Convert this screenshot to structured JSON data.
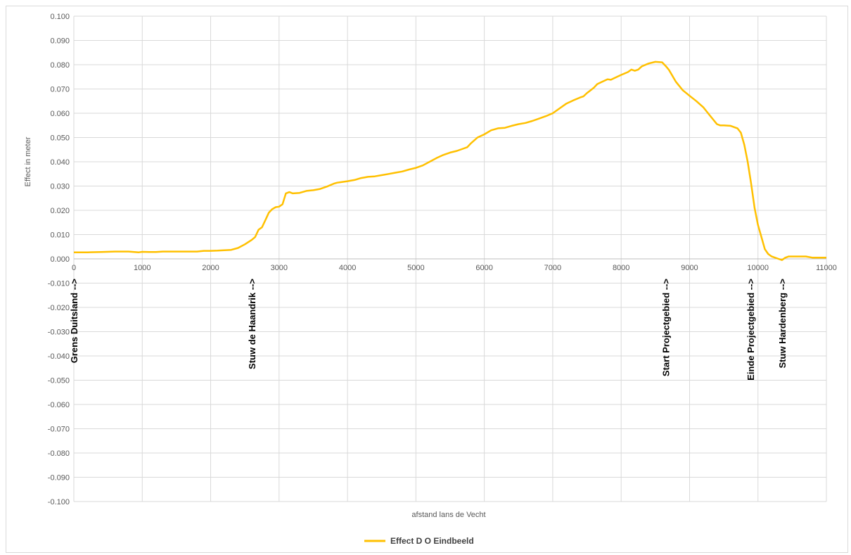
{
  "chart_data": {
    "type": "line",
    "title": "",
    "xlabel": "afstand lans de Vecht",
    "ylabel": "Effect in meter",
    "xlim": [
      0,
      11000
    ],
    "ylim": [
      -0.1,
      0.1
    ],
    "x_ticks": [
      0,
      1000,
      2000,
      3000,
      4000,
      5000,
      6000,
      7000,
      8000,
      9000,
      10000,
      11000
    ],
    "y_ticks": [
      "0.100",
      "0.090",
      "0.080",
      "0.070",
      "0.060",
      "0.050",
      "0.040",
      "0.030",
      "0.020",
      "0.010",
      "0.000",
      "-0.010",
      "-0.020",
      "-0.030",
      "-0.040",
      "-0.050",
      "-0.060",
      "-0.070",
      "-0.080",
      "-0.090",
      "-0.100"
    ],
    "grid": true,
    "legend_position": "bottom",
    "series": [
      {
        "name": "Effect D O Eindbeeld",
        "color": "#FFC000",
        "x": [
          0,
          200,
          400,
          600,
          800,
          950,
          1000,
          1100,
          1200,
          1300,
          1500,
          1800,
          1900,
          2000,
          2100,
          2300,
          2400,
          2500,
          2600,
          2650,
          2700,
          2750,
          2800,
          2850,
          2900,
          2950,
          3000,
          3050,
          3100,
          3150,
          3200,
          3300,
          3400,
          3500,
          3600,
          3700,
          3800,
          3850,
          3900,
          4000,
          4100,
          4200,
          4300,
          4400,
          4500,
          4600,
          4700,
          4800,
          4900,
          5000,
          5100,
          5200,
          5300,
          5400,
          5500,
          5600,
          5700,
          5750,
          5800,
          5900,
          6000,
          6100,
          6200,
          6300,
          6400,
          6500,
          6600,
          6700,
          6800,
          6900,
          7000,
          7100,
          7200,
          7300,
          7400,
          7450,
          7500,
          7600,
          7650,
          7700,
          7800,
          7850,
          7900,
          8000,
          8100,
          8150,
          8200,
          8250,
          8300,
          8400,
          8500,
          8600,
          8650,
          8700,
          8800,
          8900,
          9000,
          9100,
          9200,
          9300,
          9400,
          9450,
          9500,
          9600,
          9700,
          9750,
          9800,
          9850,
          9900,
          9950,
          10000,
          10050,
          10100,
          10150,
          10200,
          10300,
          10350,
          10400,
          10450,
          10500,
          10600,
          10700,
          10800,
          10900,
          11000
        ],
        "values": [
          0.0027,
          0.0027,
          0.0028,
          0.003,
          0.003,
          0.0027,
          0.0029,
          0.0028,
          0.0028,
          0.003,
          0.003,
          0.003,
          0.0033,
          0.0033,
          0.0034,
          0.0037,
          0.0045,
          0.006,
          0.0078,
          0.009,
          0.012,
          0.013,
          0.016,
          0.019,
          0.0205,
          0.0213,
          0.0215,
          0.0225,
          0.027,
          0.0275,
          0.027,
          0.0272,
          0.028,
          0.0283,
          0.0288,
          0.0298,
          0.031,
          0.0314,
          0.0316,
          0.032,
          0.0325,
          0.0333,
          0.0338,
          0.034,
          0.0345,
          0.035,
          0.0355,
          0.036,
          0.0368,
          0.0375,
          0.0385,
          0.04,
          0.0415,
          0.0428,
          0.0438,
          0.0445,
          0.0455,
          0.046,
          0.0475,
          0.05,
          0.0513,
          0.053,
          0.0538,
          0.054,
          0.0548,
          0.0555,
          0.056,
          0.0568,
          0.0578,
          0.0588,
          0.06,
          0.062,
          0.064,
          0.0653,
          0.0665,
          0.067,
          0.0683,
          0.0705,
          0.072,
          0.0727,
          0.074,
          0.0738,
          0.0745,
          0.0758,
          0.077,
          0.078,
          0.0775,
          0.078,
          0.0793,
          0.0805,
          0.0812,
          0.081,
          0.0795,
          0.0778,
          0.073,
          0.0695,
          0.0672,
          0.065,
          0.0625,
          0.059,
          0.0555,
          0.055,
          0.055,
          0.0548,
          0.0538,
          0.052,
          0.047,
          0.04,
          0.031,
          0.021,
          0.014,
          0.009,
          0.004,
          0.002,
          0.001,
          0.0,
          -0.0005,
          0.0005,
          0.001,
          0.001,
          0.001,
          0.001,
          0.0005,
          0.0005,
          0.0005
        ]
      }
    ],
    "annotations": [
      {
        "x": 0,
        "text": "Grens Duitsland -->"
      },
      {
        "x": 2600,
        "text": "Stuw de Haandrik -->"
      },
      {
        "x": 8650,
        "text": "Start Projectgebied -->"
      },
      {
        "x": 9890,
        "text": "Einde Projectgebied -->"
      },
      {
        "x": 10350,
        "text": "Stuw Hardenberg -->"
      }
    ]
  }
}
